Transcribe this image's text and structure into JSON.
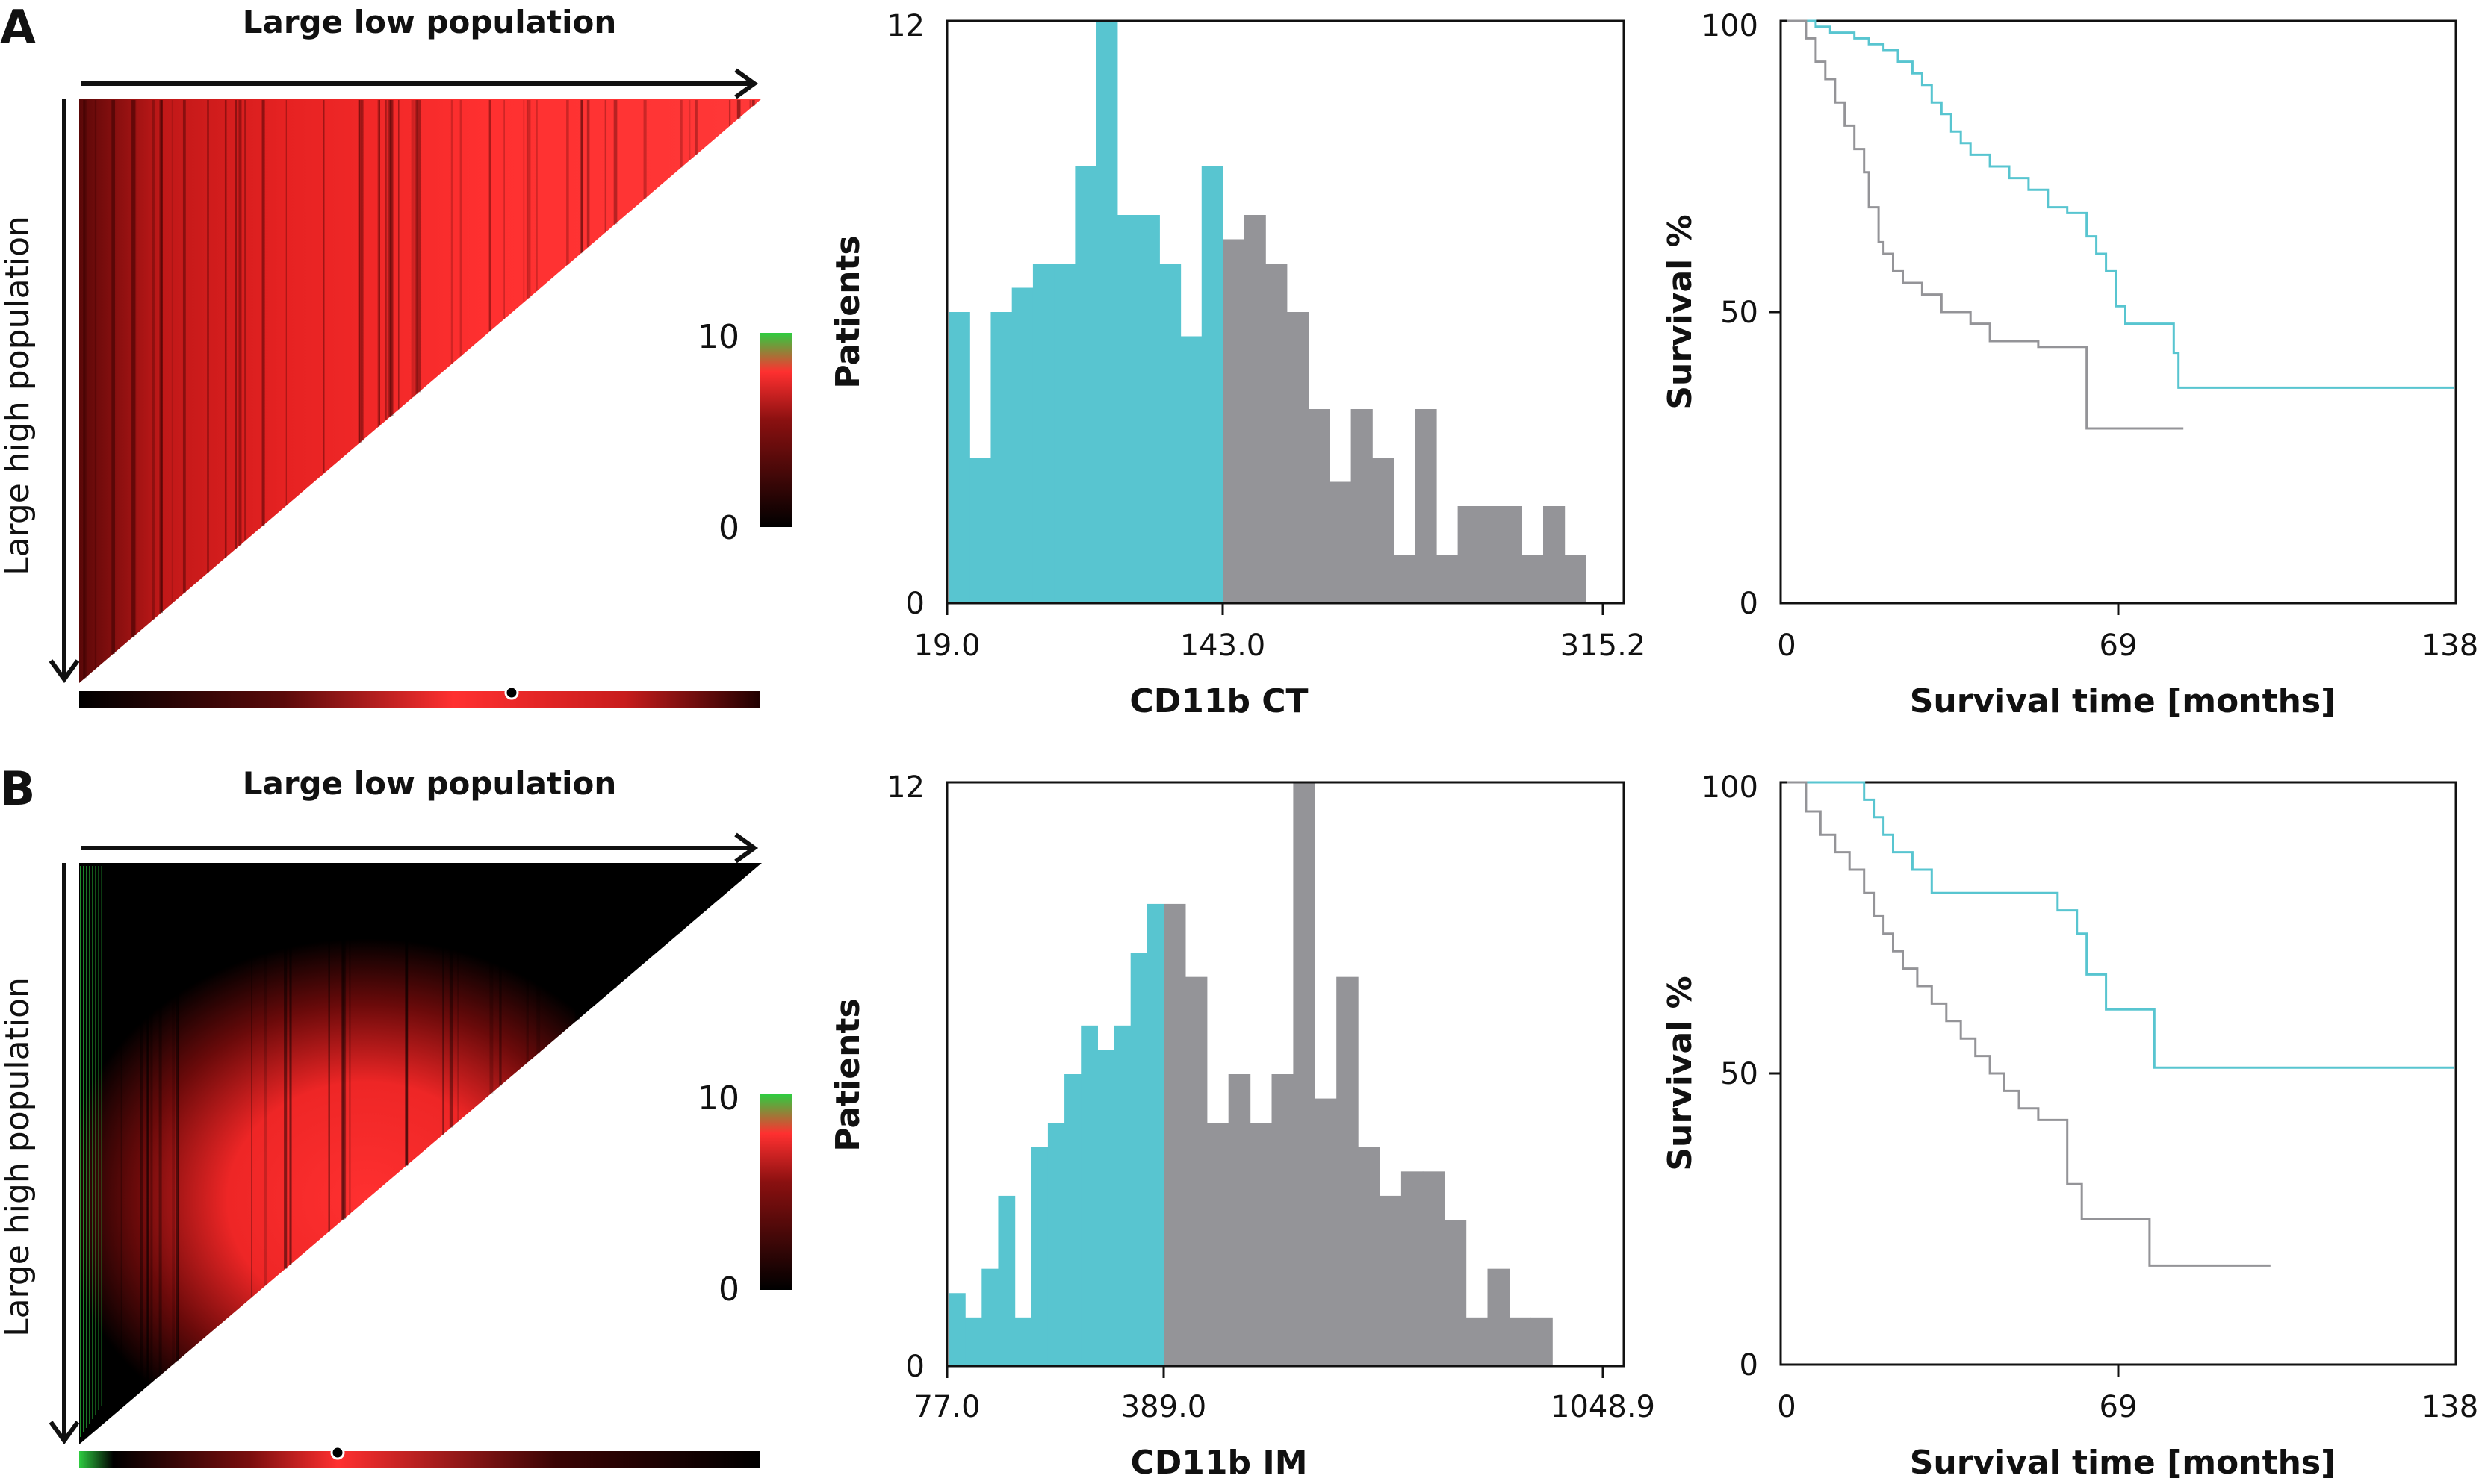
{
  "colors": {
    "blue": "#58c5d0",
    "gray": "#949498",
    "axis": "#111111",
    "heat_low": "#000000",
    "heat_mid": "#ff3030",
    "heat_high": "#2ecc40"
  },
  "panels": [
    {
      "letter": "A",
      "heatmap": {
        "top_label": "Large low population",
        "side_label": "Large high population",
        "scale_max": "10",
        "scale_min": "0"
      },
      "histogram": {
        "ylabel": "Patients",
        "xlabel": "CD11b CT",
        "ymax_label": "12",
        "ymin_label": "0",
        "xticks": [
          "19.0",
          "143.0",
          "315.2"
        ]
      },
      "survival": {
        "ylabel": "Survival %",
        "xlabel": "Survival time [months]",
        "yticks": [
          "100",
          "50",
          "0"
        ],
        "xticks": [
          "0",
          "69",
          "138"
        ]
      }
    },
    {
      "letter": "B",
      "heatmap": {
        "top_label": "Large low population",
        "side_label": "Large high population",
        "scale_max": "10",
        "scale_min": "0"
      },
      "histogram": {
        "ylabel": "Patients",
        "xlabel": "CD11b IM",
        "ymax_label": "12",
        "ymin_label": "0",
        "xticks": [
          "77.0",
          "389.0",
          "1048.9"
        ]
      },
      "survival": {
        "ylabel": "Survival %",
        "xlabel": "Survival time [months]",
        "yticks": [
          "100",
          "50",
          "0"
        ],
        "xticks": [
          "0",
          "69",
          "138"
        ]
      }
    }
  ],
  "chart_data": [
    {
      "type": "heatmap",
      "panel": "A",
      "note": "triangular cut-point map; black = 0, red ~ 5-8, green = 10",
      "scale": [
        0,
        10
      ]
    },
    {
      "type": "bar",
      "panel": "A",
      "xlabel": "CD11b CT",
      "ylabel": "Patients",
      "ylim": [
        0,
        12
      ],
      "x_ticks": [
        19.0,
        143.0,
        315.2
      ],
      "cutoff": 143.0,
      "series": [
        {
          "color": "blue",
          "values": [
            6,
            3,
            6,
            6.5,
            7,
            7,
            9,
            12,
            8,
            8,
            7,
            5.5,
            9
          ]
        },
        {
          "color": "gray",
          "values": [
            7.5,
            8,
            7,
            6,
            4,
            2.5,
            4,
            3,
            1,
            4,
            1,
            2,
            2,
            2,
            1,
            2,
            1
          ]
        }
      ]
    },
    {
      "type": "line",
      "panel": "A",
      "xlabel": "Survival time [months]",
      "ylabel": "Survival %",
      "xlim": [
        0,
        138
      ],
      "ylim": [
        0,
        100
      ],
      "series": [
        {
          "color": "blue",
          "points": [
            [
              0,
              100
            ],
            [
              6,
              100
            ],
            [
              6,
              99
            ],
            [
              9,
              99
            ],
            [
              9,
              98
            ],
            [
              14,
              98
            ],
            [
              14,
              97
            ],
            [
              17,
              97
            ],
            [
              17,
              96
            ],
            [
              20,
              96
            ],
            [
              20,
              95
            ],
            [
              23,
              95
            ],
            [
              23,
              93
            ],
            [
              26,
              93
            ],
            [
              26,
              91
            ],
            [
              28,
              91
            ],
            [
              28,
              89
            ],
            [
              30,
              89
            ],
            [
              30,
              86
            ],
            [
              32,
              86
            ],
            [
              32,
              84
            ],
            [
              34,
              84
            ],
            [
              34,
              81
            ],
            [
              36,
              81
            ],
            [
              36,
              79
            ],
            [
              38,
              79
            ],
            [
              38,
              77
            ],
            [
              42,
              77
            ],
            [
              42,
              75
            ],
            [
              46,
              75
            ],
            [
              46,
              73
            ],
            [
              50,
              73
            ],
            [
              50,
              71
            ],
            [
              54,
              71
            ],
            [
              54,
              68
            ],
            [
              58,
              68
            ],
            [
              58,
              67
            ],
            [
              62,
              67
            ],
            [
              62,
              63
            ],
            [
              64,
              63
            ],
            [
              64,
              60
            ],
            [
              66,
              60
            ],
            [
              66,
              57
            ],
            [
              68,
              57
            ],
            [
              68,
              51
            ],
            [
              70,
              51
            ],
            [
              70,
              48
            ],
            [
              80,
              48
            ],
            [
              80,
              43
            ],
            [
              81,
              43
            ],
            [
              81,
              37
            ],
            [
              138,
              37
            ]
          ]
        },
        {
          "color": "gray",
          "points": [
            [
              0,
              100
            ],
            [
              4,
              100
            ],
            [
              4,
              97
            ],
            [
              6,
              97
            ],
            [
              6,
              93
            ],
            [
              8,
              93
            ],
            [
              8,
              90
            ],
            [
              10,
              90
            ],
            [
              10,
              86
            ],
            [
              12,
              86
            ],
            [
              12,
              82
            ],
            [
              14,
              82
            ],
            [
              14,
              78
            ],
            [
              16,
              78
            ],
            [
              16,
              74
            ],
            [
              17,
              74
            ],
            [
              17,
              68
            ],
            [
              19,
              68
            ],
            [
              19,
              62
            ],
            [
              20,
              62
            ],
            [
              20,
              60
            ],
            [
              22,
              60
            ],
            [
              22,
              57
            ],
            [
              24,
              57
            ],
            [
              24,
              55
            ],
            [
              28,
              55
            ],
            [
              28,
              53
            ],
            [
              32,
              53
            ],
            [
              32,
              50
            ],
            [
              38,
              50
            ],
            [
              38,
              48
            ],
            [
              42,
              48
            ],
            [
              42,
              45
            ],
            [
              52,
              45
            ],
            [
              52,
              44
            ],
            [
              62,
              44
            ],
            [
              62,
              30
            ],
            [
              82,
              30
            ]
          ]
        }
      ]
    },
    {
      "type": "heatmap",
      "panel": "B",
      "note": "triangular cut-point map; black = 0, red ~ 5-8, green = 10",
      "scale": [
        0,
        10
      ]
    },
    {
      "type": "bar",
      "panel": "B",
      "xlabel": "CD11b IM",
      "ylabel": "Patients",
      "ylim": [
        0,
        12
      ],
      "x_ticks": [
        77.0,
        389.0,
        1048.9
      ],
      "cutoff": 389.0,
      "series": [
        {
          "color": "blue",
          "values": [
            1.5,
            1,
            2,
            3.5,
            1,
            4.5,
            5,
            6,
            7,
            6.5,
            7,
            8.5,
            9.5
          ]
        },
        {
          "color": "gray",
          "values": [
            9.5,
            8,
            5,
            6,
            5,
            6,
            12,
            5.5,
            8,
            4.5,
            3.5,
            4,
            4,
            3,
            1,
            2,
            1,
            1,
            0,
            0
          ]
        }
      ]
    },
    {
      "type": "line",
      "panel": "B",
      "xlabel": "Survival time [months]",
      "ylabel": "Survival %",
      "xlim": [
        0,
        138
      ],
      "ylim": [
        0,
        100
      ],
      "series": [
        {
          "color": "blue",
          "points": [
            [
              0,
              100
            ],
            [
              16,
              100
            ],
            [
              16,
              97
            ],
            [
              18,
              97
            ],
            [
              18,
              94
            ],
            [
              20,
              94
            ],
            [
              20,
              91
            ],
            [
              22,
              91
            ],
            [
              22,
              88
            ],
            [
              26,
              88
            ],
            [
              26,
              85
            ],
            [
              30,
              85
            ],
            [
              30,
              81
            ],
            [
              56,
              81
            ],
            [
              56,
              78
            ],
            [
              60,
              78
            ],
            [
              60,
              74
            ],
            [
              62,
              74
            ],
            [
              62,
              67
            ],
            [
              66,
              67
            ],
            [
              66,
              61
            ],
            [
              76,
              61
            ],
            [
              76,
              51
            ],
            [
              138,
              51
            ]
          ]
        },
        {
          "color": "gray",
          "points": [
            [
              0,
              100
            ],
            [
              4,
              100
            ],
            [
              4,
              95
            ],
            [
              7,
              95
            ],
            [
              7,
              91
            ],
            [
              10,
              91
            ],
            [
              10,
              88
            ],
            [
              13,
              88
            ],
            [
              13,
              85
            ],
            [
              16,
              85
            ],
            [
              16,
              81
            ],
            [
              18,
              81
            ],
            [
              18,
              77
            ],
            [
              20,
              77
            ],
            [
              20,
              74
            ],
            [
              22,
              74
            ],
            [
              22,
              71
            ],
            [
              24,
              71
            ],
            [
              24,
              68
            ],
            [
              27,
              68
            ],
            [
              27,
              65
            ],
            [
              30,
              65
            ],
            [
              30,
              62
            ],
            [
              33,
              62
            ],
            [
              33,
              59
            ],
            [
              36,
              59
            ],
            [
              36,
              56
            ],
            [
              39,
              56
            ],
            [
              39,
              53
            ],
            [
              42,
              53
            ],
            [
              42,
              50
            ],
            [
              45,
              50
            ],
            [
              45,
              47
            ],
            [
              48,
              47
            ],
            [
              48,
              44
            ],
            [
              52,
              44
            ],
            [
              52,
              42
            ],
            [
              58,
              42
            ],
            [
              58,
              31
            ],
            [
              61,
              31
            ],
            [
              61,
              25
            ],
            [
              75,
              25
            ],
            [
              75,
              17
            ],
            [
              100,
              17
            ]
          ]
        }
      ]
    }
  ]
}
